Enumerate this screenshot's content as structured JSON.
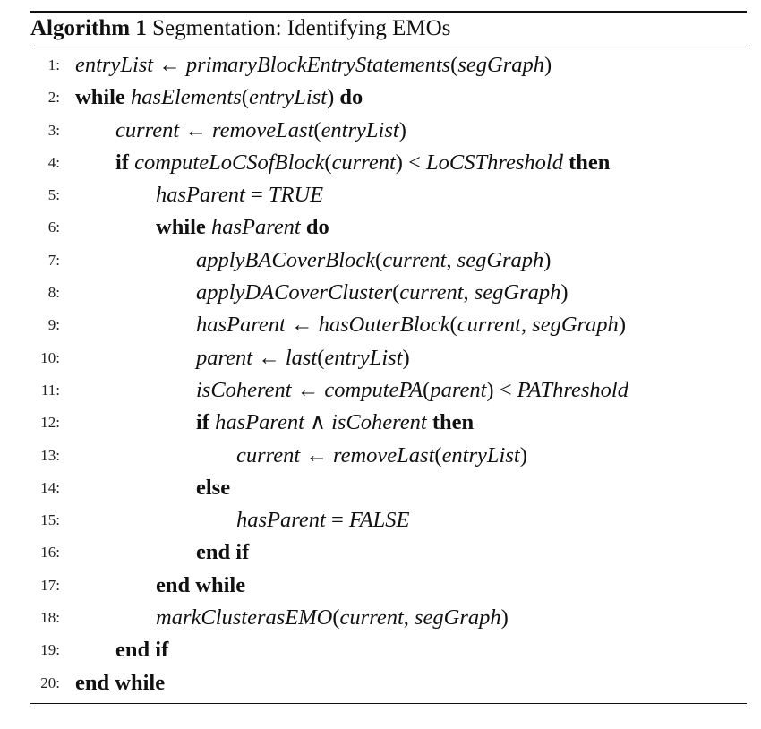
{
  "caption": {
    "label": "Algorithm 1",
    "title": "Segmentation: Identifying EMOs"
  },
  "lines": [
    {
      "num": "1:",
      "text": "entryList ← primaryBlockEntryStatements(segGraph)"
    },
    {
      "num": "2:",
      "text": "while hasElements(entryList) do"
    },
    {
      "num": "3:",
      "text": "current ← removeLast(entryList)"
    },
    {
      "num": "4:",
      "text": "if computeLoCSofBlock(current) < LoCSThreshold then"
    },
    {
      "num": "5:",
      "text": "hasParent = TRUE"
    },
    {
      "num": "6:",
      "text": "while hasParent do"
    },
    {
      "num": "7:",
      "text": "applyBACoverBlock(current, segGraph)"
    },
    {
      "num": "8:",
      "text": "applyDACoverCluster(current, segGraph)"
    },
    {
      "num": "9:",
      "text": "hasParent ← hasOuterBlock(current, segGraph)"
    },
    {
      "num": "10:",
      "text": "parent ← last(entryList)"
    },
    {
      "num": "11:",
      "text": "isCoherent ← computePA(parent) < PAThreshold"
    },
    {
      "num": "12:",
      "text": "if hasParent ∧ isCoherent then"
    },
    {
      "num": "13:",
      "text": "current ← removeLast(entryList)"
    },
    {
      "num": "14:",
      "text": "else"
    },
    {
      "num": "15:",
      "text": "hasParent = FALSE"
    },
    {
      "num": "16:",
      "text": "end if"
    },
    {
      "num": "17:",
      "text": "end while"
    },
    {
      "num": "18:",
      "text": "markClusterasEMO(current, segGraph)"
    },
    {
      "num": "19:",
      "text": "end if"
    },
    {
      "num": "20:",
      "text": "end while"
    }
  ]
}
